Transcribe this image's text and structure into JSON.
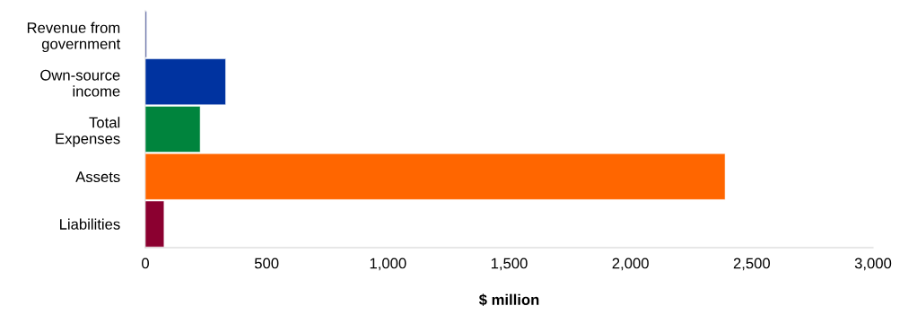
{
  "chart_data": {
    "type": "bar",
    "orientation": "horizontal",
    "xlabel": "$ million",
    "categories": [
      "Revenue from\ngovernment",
      "Own-source\nincome",
      "Total\nExpenses",
      "Assets",
      "Liabilities"
    ],
    "values": [
      5,
      331,
      226,
      2390,
      77
    ],
    "colors": [
      "#2b3a8c",
      "#0033a0",
      "#00843d",
      "#ff6600",
      "#8b0030"
    ],
    "xlim": [
      0,
      3000
    ],
    "xticks": [
      0,
      {
        "value": 500,
        "label": "500"
      },
      {
        "value": 1000,
        "label": "1,000"
      },
      {
        "value": 1500,
        "label": "1,500"
      },
      {
        "value": 2000,
        "label": "2,000"
      },
      {
        "value": 2500,
        "label": "2,500"
      },
      {
        "value": 3000,
        "label": "3,000"
      }
    ],
    "grid": false,
    "legend": false
  }
}
